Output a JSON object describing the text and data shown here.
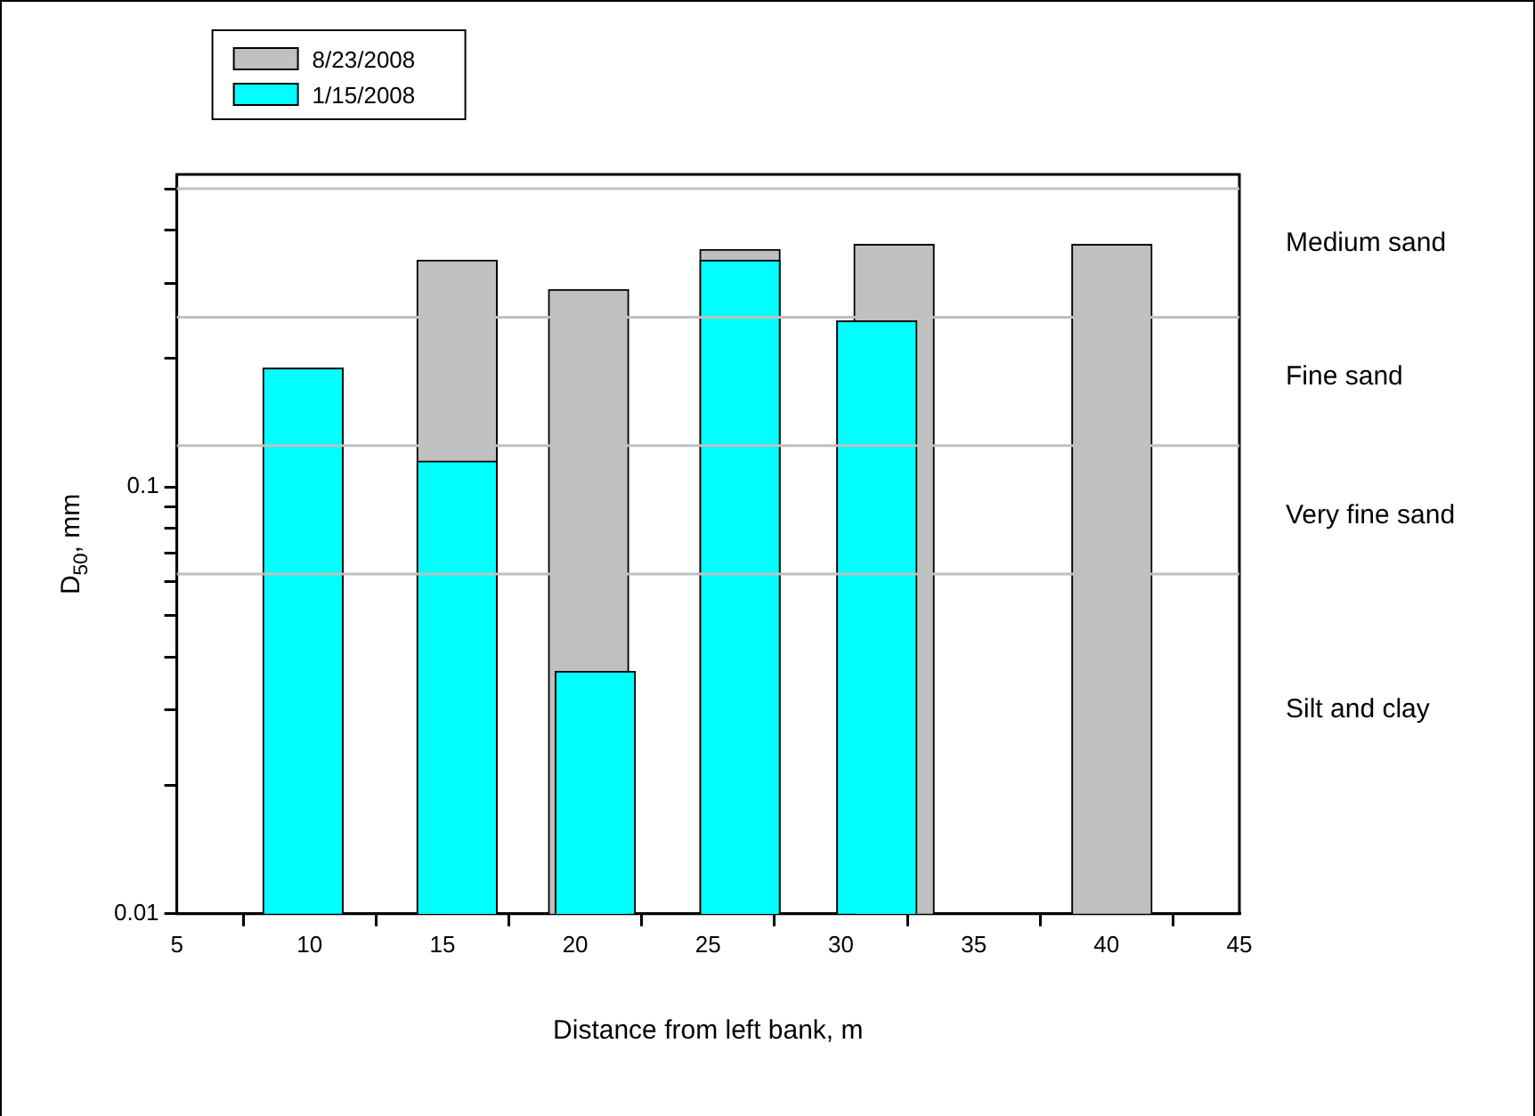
{
  "chart_data": {
    "type": "bar",
    "xlabel": "Distance from left bank, m",
    "ylabel": "D$_{50}$, mm",
    "log": "y",
    "xlim": [
      5,
      45
    ],
    "xticks": [
      5,
      10,
      15,
      20,
      25,
      30,
      35,
      40,
      45
    ],
    "ylim": [
      0.01,
      0.54
    ],
    "yticks": [
      0.01,
      {
        "value": 0.02,
        "label": null
      },
      {
        "value": 0.03,
        "label": null
      },
      {
        "value": 0.04,
        "label": null
      },
      {
        "value": 0.05,
        "label": null
      },
      {
        "value": 0.06,
        "label": null
      },
      {
        "value": 0.07,
        "label": null
      },
      {
        "value": 0.08,
        "label": null
      },
      {
        "value": 0.09,
        "label": null
      },
      0.1,
      {
        "value": 0.2,
        "label": null
      },
      {
        "value": 0.3,
        "label": null
      },
      {
        "value": 0.4,
        "label": null
      },
      {
        "value": 0.5,
        "label": null
      }
    ],
    "grid": false,
    "legend": "top left",
    "series": [
      {
        "name": "8/23/2008",
        "color": "#c0c0c0",
        "x": [
          15.55,
          20.5,
          26.2,
          32,
          40.2
        ],
        "values": [
          0.34,
          0.29,
          0.36,
          0.37,
          0.37
        ]
      },
      {
        "name": "1/15/2008",
        "color": "#00ffff",
        "x": [
          9.75,
          15.55,
          20.75,
          26.2,
          31.35
        ],
        "values": [
          0.19,
          0.115,
          0.037,
          0.34,
          0.245
        ]
      }
    ],
    "ref_lines": [
      {
        "axis": "y",
        "value": 0.0625,
        "color": "#c0c0c0"
      },
      {
        "axis": "y",
        "value": 0.125,
        "color": "#c0c0c0"
      },
      {
        "axis": "y",
        "value": 0.25,
        "color": "#c0c0c0"
      },
      {
        "axis": "y",
        "value": 0.5,
        "color": "#c0c0c0"
      }
    ],
    "annotations": [
      "Medium sand",
      "Fine sand",
      "Very fine sand",
      "Silt and clay"
    ]
  }
}
